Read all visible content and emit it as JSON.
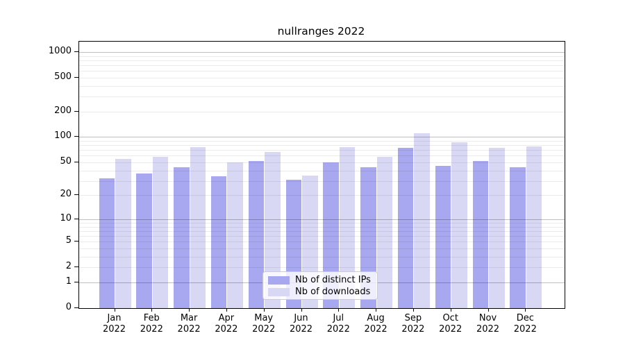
{
  "title": "nullranges 2022",
  "chart_data": {
    "type": "bar",
    "title": "nullranges 2022",
    "x_months": [
      "Jan",
      "Feb",
      "Mar",
      "Apr",
      "May",
      "Jun",
      "Jul",
      "Aug",
      "Sep",
      "Oct",
      "Nov",
      "Dec"
    ],
    "x_year": "2022",
    "categories": [
      "Jan 2022",
      "Feb 2022",
      "Mar 2022",
      "Apr 2022",
      "May 2022",
      "Jun 2022",
      "Jul 2022",
      "Aug 2022",
      "Sep 2022",
      "Oct 2022",
      "Nov 2022",
      "Dec 2022"
    ],
    "series": [
      {
        "name": "Nb of distinct IPs",
        "color": "#a8a8f0",
        "values": [
          32,
          37,
          44,
          34,
          52,
          31,
          50,
          44,
          75,
          45,
          52,
          44
        ]
      },
      {
        "name": "Nb of downloads",
        "color": "#d8d8f5",
        "values": [
          55,
          58,
          76,
          50,
          67,
          35,
          76,
          58,
          110,
          86,
          75,
          78
        ]
      }
    ],
    "xlabel": "",
    "ylabel": "",
    "y_scale": "log1p",
    "y_ticks": [
      0,
      1,
      2,
      5,
      10,
      20,
      50,
      100,
      200,
      500,
      1000
    ],
    "y_major_gridlines": [
      1,
      10,
      100,
      1000
    ],
    "y_minor_gridlines": [
      2,
      3,
      4,
      5,
      6,
      7,
      8,
      9,
      20,
      30,
      40,
      50,
      60,
      70,
      80,
      90,
      200,
      300,
      400,
      500,
      600,
      700,
      800,
      900
    ],
    "ylim": [
      0,
      1320
    ],
    "grid": true,
    "legend": {
      "position": "lower center",
      "entries": [
        "Nb of distinct IPs",
        "Nb of downloads"
      ]
    },
    "colors": {
      "major_grid": "rgba(0,0,0,0.25)",
      "minor_grid": "rgba(0,0,0,0.08)",
      "axis": "#000000",
      "text": "#000000",
      "legend_border": "#cccccc",
      "legend_bg": "rgba(255,255,255,0.8)"
    }
  }
}
